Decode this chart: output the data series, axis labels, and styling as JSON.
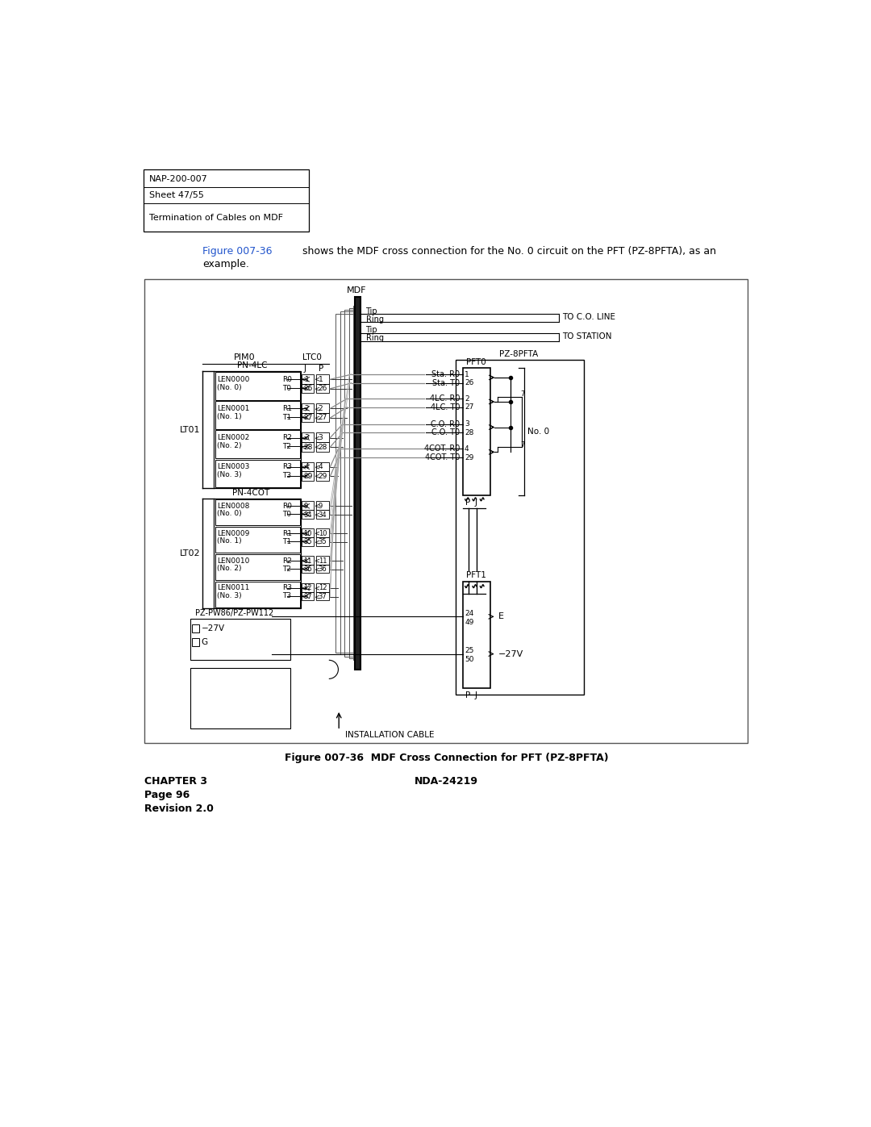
{
  "header": [
    "NAP-200-007",
    "Sheet 47/55",
    "Termination of Cables on MDF"
  ],
  "intro_blue": "Figure 007-36",
  "intro_black": "shows the MDF cross connection for the No. 0 circuit on the PFT (PZ-8PFTA), as an\nexample.",
  "footer_left": [
    "CHAPTER 3",
    "Page 96",
    "Revision 2.0"
  ],
  "footer_center": "NDA-24219",
  "caption": "Figure 007-36  MDF Cross Connection for PFT (PZ-8PFTA)"
}
